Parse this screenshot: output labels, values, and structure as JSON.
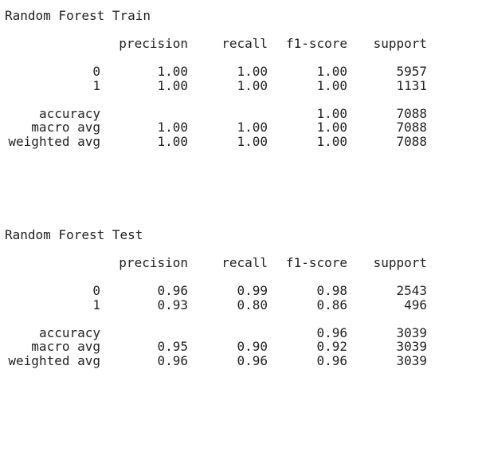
{
  "reports": [
    {
      "title": "Random Forest Train",
      "headers": {
        "precision": "precision",
        "recall": "recall",
        "f1": "f1-score",
        "support": "support"
      },
      "classes": [
        {
          "label": "0",
          "precision": "1.00",
          "recall": "1.00",
          "f1": "1.00",
          "support": "5957"
        },
        {
          "label": "1",
          "precision": "1.00",
          "recall": "1.00",
          "f1": "1.00",
          "support": "1131"
        }
      ],
      "summary": [
        {
          "label": "accuracy",
          "precision": "",
          "recall": "",
          "f1": "1.00",
          "support": "7088"
        },
        {
          "label": "macro avg",
          "precision": "1.00",
          "recall": "1.00",
          "f1": "1.00",
          "support": "7088"
        },
        {
          "label": "weighted avg",
          "precision": "1.00",
          "recall": "1.00",
          "f1": "1.00",
          "support": "7088"
        }
      ]
    },
    {
      "title": "Random Forest Test",
      "headers": {
        "precision": "precision",
        "recall": "recall",
        "f1": "f1-score",
        "support": "support"
      },
      "classes": [
        {
          "label": "0",
          "precision": "0.96",
          "recall": "0.99",
          "f1": "0.98",
          "support": "2543"
        },
        {
          "label": "1",
          "precision": "0.93",
          "recall": "0.80",
          "f1": "0.86",
          "support": "496"
        }
      ],
      "summary": [
        {
          "label": "accuracy",
          "precision": "",
          "recall": "",
          "f1": "0.96",
          "support": "3039"
        },
        {
          "label": "macro avg",
          "precision": "0.95",
          "recall": "0.90",
          "f1": "0.92",
          "support": "3039"
        },
        {
          "label": "weighted avg",
          "precision": "0.96",
          "recall": "0.96",
          "f1": "0.96",
          "support": "3039"
        }
      ]
    }
  ]
}
